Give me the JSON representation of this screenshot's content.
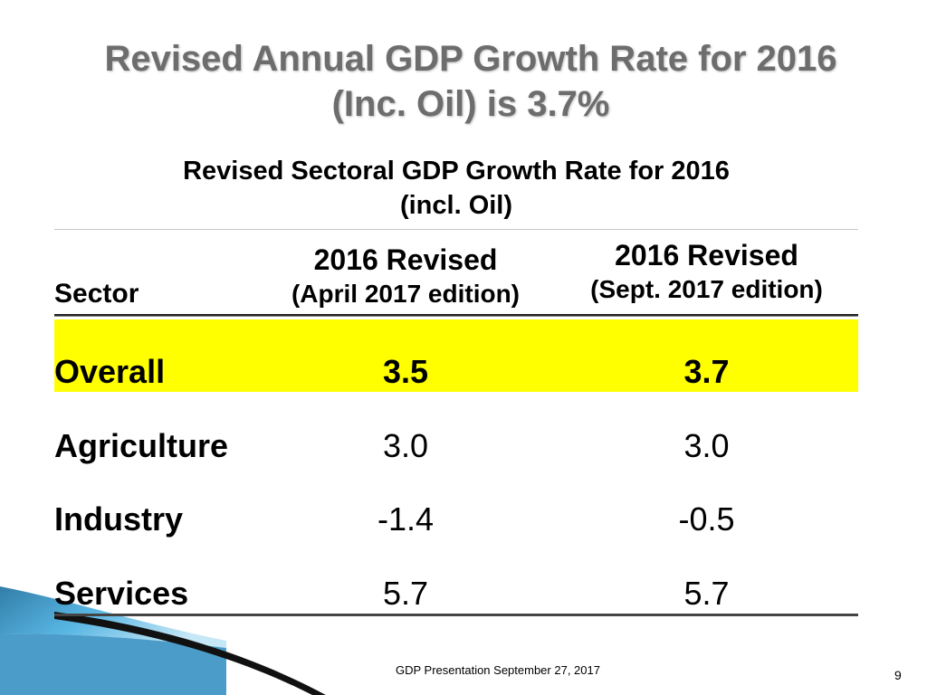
{
  "slide": {
    "title_line1": "Revised Annual GDP Growth Rate for 2016",
    "title_line2": "(Inc. Oil) is 3.7%",
    "subtitle_line1": "Revised Sectoral GDP Growth Rate for 2016",
    "subtitle_line2": "(incl. Oil)"
  },
  "table": {
    "header": {
      "sector": "Sector",
      "col1_line1": "2016 Revised",
      "col1_line2": "(April 2017 edition)",
      "col2_line1": "2016 Revised",
      "col2_line2": "(Sept. 2017 edition)"
    },
    "rows": [
      {
        "sector": "Overall",
        "april": "3.5",
        "sept": "3.7"
      },
      {
        "sector": "Agriculture",
        "april": "3.0",
        "sept": "3.0"
      },
      {
        "sector": "Industry",
        "april": "-1.4",
        "sept": "-0.5"
      },
      {
        "sector": "Services",
        "april": "5.7",
        "sept": "5.7"
      }
    ],
    "highlight_color": "#ffff00"
  },
  "footer": {
    "text": "GDP Presentation September 27, 2017",
    "page_number": "9"
  },
  "colors": {
    "title": "#6d6d6d",
    "accent_blue": "#1f8fc6"
  }
}
